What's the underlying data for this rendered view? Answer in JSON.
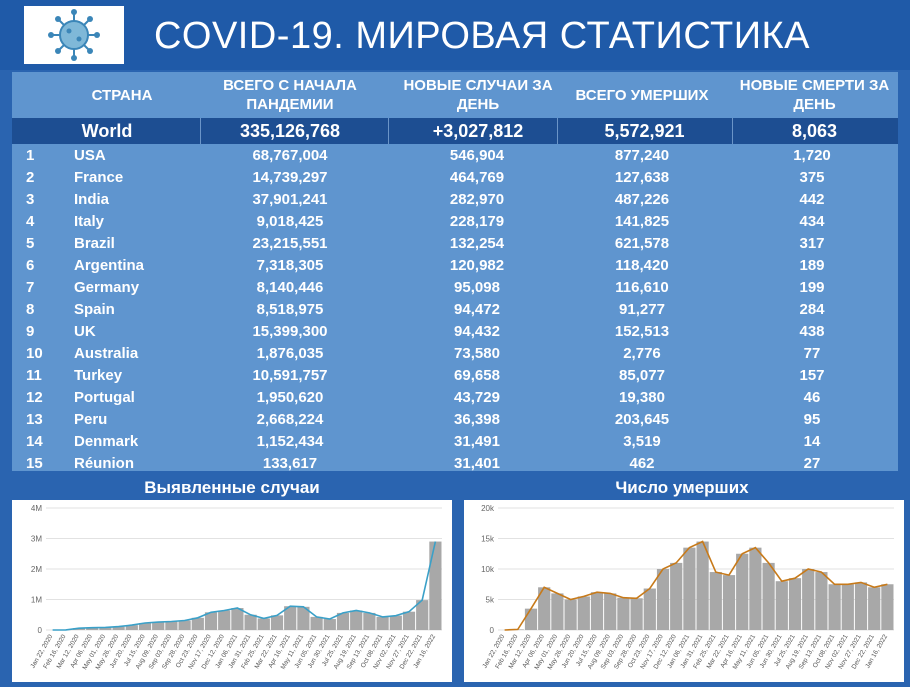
{
  "header": {
    "title": "COVID-19. МИРОВАЯ СТАТИСТИКА",
    "logo_icon": "virus-icon"
  },
  "colors": {
    "background": "#2a64b0",
    "table_body": "#5f95cf",
    "world_row": "#1d4e92",
    "cases_line": "#3aa0c8",
    "deaths_line": "#c77a1a",
    "bars": "#9a9a9a"
  },
  "table": {
    "headers": {
      "country": "СТРАНА",
      "total": "ВСЕГО С НАЧАЛА ПАНДЕМИИ",
      "new": "НОВЫЕ СЛУЧАИ ЗА ДЕНЬ",
      "deaths": "ВСЕГО УМЕРШИХ",
      "new_deaths": "НОВЫЕ СМЕРТИ ЗА ДЕНЬ"
    },
    "world": {
      "label": "World",
      "total": "335,126,768",
      "new": "+3,027,812",
      "deaths": "5,572,921",
      "new_deaths": "8,063"
    },
    "rows": [
      {
        "rank": "1",
        "country": "USA",
        "total": "68,767,004",
        "new": "546,904",
        "deaths": "877,240",
        "new_deaths": "1,720"
      },
      {
        "rank": "2",
        "country": "France",
        "total": "14,739,297",
        "new": "464,769",
        "deaths": "127,638",
        "new_deaths": "375"
      },
      {
        "rank": "3",
        "country": "India",
        "total": "37,901,241",
        "new": "282,970",
        "deaths": "487,226",
        "new_deaths": "442"
      },
      {
        "rank": "4",
        "country": "Italy",
        "total": "9,018,425",
        "new": "228,179",
        "deaths": "141,825",
        "new_deaths": "434"
      },
      {
        "rank": "5",
        "country": "Brazil",
        "total": "23,215,551",
        "new": "132,254",
        "deaths": "621,578",
        "new_deaths": "317"
      },
      {
        "rank": "6",
        "country": "Argentina",
        "total": "7,318,305",
        "new": "120,982",
        "deaths": "118,420",
        "new_deaths": "189"
      },
      {
        "rank": "7",
        "country": "Germany",
        "total": "8,140,446",
        "new": "95,098",
        "deaths": "116,610",
        "new_deaths": "199"
      },
      {
        "rank": "8",
        "country": "Spain",
        "total": "8,518,975",
        "new": "94,472",
        "deaths": "91,277",
        "new_deaths": "284"
      },
      {
        "rank": "9",
        "country": "UK",
        "total": "15,399,300",
        "new": "94,432",
        "deaths": "152,513",
        "new_deaths": "438"
      },
      {
        "rank": "10",
        "country": "Australia",
        "total": "1,876,035",
        "new": "73,580",
        "deaths": "2,776",
        "new_deaths": "77"
      },
      {
        "rank": "11",
        "country": "Turkey",
        "total": "10,591,757",
        "new": "69,658",
        "deaths": "85,077",
        "new_deaths": "157"
      },
      {
        "rank": "12",
        "country": "Portugal",
        "total": "1,950,620",
        "new": "43,729",
        "deaths": "19,380",
        "new_deaths": "46"
      },
      {
        "rank": "13",
        "country": "Peru",
        "total": "2,668,224",
        "new": "36,398",
        "deaths": "203,645",
        "new_deaths": "95"
      },
      {
        "rank": "14",
        "country": "Denmark",
        "total": "1,152,434",
        "new": "31,491",
        "deaths": "3,519",
        "new_deaths": "14"
      },
      {
        "rank": "15",
        "country": "Réunion",
        "total": "133,617",
        "new": "31,401",
        "deaths": "462",
        "new_deaths": "27"
      }
    ]
  },
  "chart_data": [
    {
      "type": "bar",
      "title": "Выявленные случаи",
      "ylim": [
        0,
        4000000
      ],
      "ytick_labels": [
        "0",
        "1M",
        "2M",
        "3M",
        "4M"
      ],
      "ytick_values": [
        0,
        1000000,
        2000000,
        3000000,
        4000000
      ],
      "grid": true,
      "categories": [
        "Jan 22, 2020",
        "Feb 16, 2020",
        "Mar 12, 2020",
        "Apr 06, 2020",
        "May 01, 2020",
        "May 26, 2020",
        "Jun 20, 2020",
        "Jul 15, 2020",
        "Aug 09, 2020",
        "Sep 03, 2020",
        "Sep 28, 2020",
        "Oct 23, 2020",
        "Nov 17, 2020",
        "Dec 12, 2020",
        "Jan 06, 2021",
        "Jan 31, 2021",
        "Feb 25, 2021",
        "Mar 22, 2021",
        "Apr 16, 2021",
        "May 11, 2021",
        "Jun 05, 2021",
        "Jun 30, 2021",
        "Jul 25, 2021",
        "Aug 19, 2021",
        "Sep 13, 2021",
        "Oct 08, 2021",
        "Nov 02, 2021",
        "Nov 27, 2021",
        "Dec 22, 2021",
        "Jan 16, 2022"
      ],
      "values": [
        0,
        2000,
        60000,
        75000,
        85000,
        110000,
        160000,
        230000,
        260000,
        280000,
        310000,
        400000,
        580000,
        640000,
        720000,
        500000,
        380000,
        480000,
        780000,
        760000,
        430000,
        360000,
        560000,
        640000,
        560000,
        430000,
        470000,
        600000,
        980000,
        2900000
      ]
    },
    {
      "type": "bar",
      "title": "Число умерших",
      "ylim": [
        0,
        20000
      ],
      "ytick_labels": [
        "0",
        "5k",
        "10k",
        "15k",
        "20k"
      ],
      "ytick_values": [
        0,
        5000,
        10000,
        15000,
        20000
      ],
      "grid": true,
      "categories": [
        "Jan 22, 2020",
        "Feb 16, 2020",
        "Mar 12, 2020",
        "Apr 06, 2020",
        "May 01, 2020",
        "May 26, 2020",
        "Jun 20, 2020",
        "Jul 15, 2020",
        "Aug 09, 2020",
        "Sep 03, 2020",
        "Sep 28, 2020",
        "Oct 23, 2020",
        "Nov 17, 2020",
        "Dec 12, 2020",
        "Jan 06, 2021",
        "Jan 31, 2021",
        "Feb 25, 2021",
        "Mar 22, 2021",
        "Apr 16, 2021",
        "May 11, 2021",
        "Jun 05, 2021",
        "Jun 30, 2021",
        "Jul 25, 2021",
        "Aug 19, 2021",
        "Sep 13, 2021",
        "Oct 08, 2021",
        "Nov 02, 2021",
        "Nov 27, 2021",
        "Dec 22, 2021",
        "Jan 16, 2022"
      ],
      "values": [
        0,
        100,
        3500,
        7000,
        6000,
        5000,
        5500,
        6200,
        6000,
        5300,
        5200,
        6800,
        10000,
        11000,
        13500,
        14500,
        9500,
        9000,
        12500,
        13500,
        11000,
        8000,
        8500,
        10000,
        9500,
        7500,
        7500,
        7800,
        7000,
        7500
      ]
    }
  ]
}
